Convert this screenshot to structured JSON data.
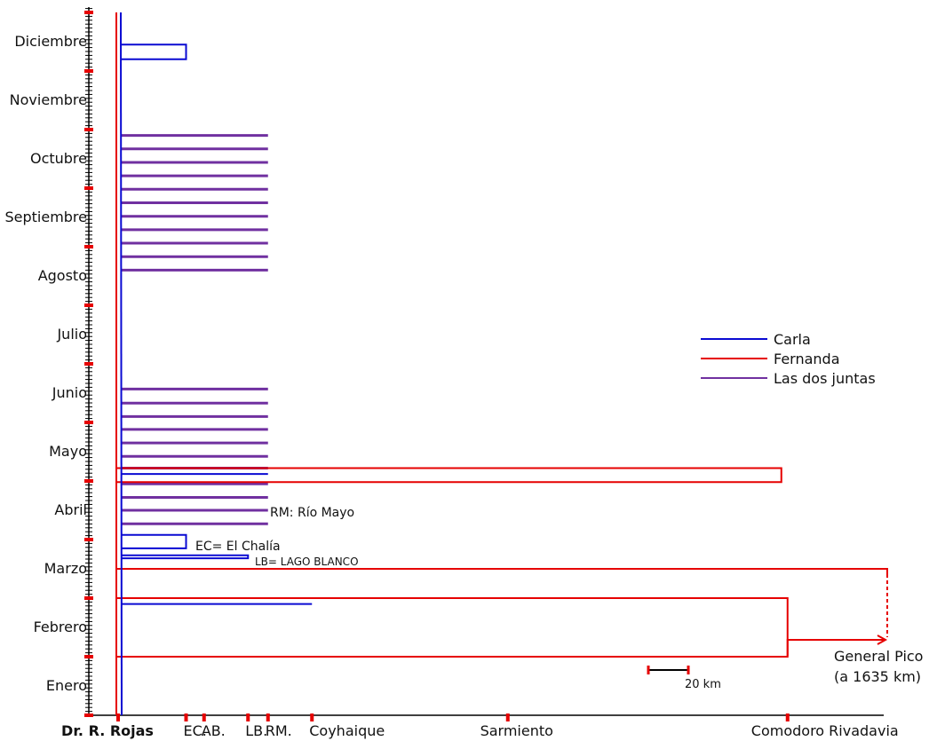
{
  "chart_data": {
    "type": "line",
    "title": "",
    "y_categories": [
      "Enero",
      "Febrero",
      "Marzo",
      "Abril",
      "Mayo",
      "Junio",
      "Julio",
      "Agosto",
      "Septiembre",
      "Octubre",
      "Noviembre",
      "Diciembre"
    ],
    "x_locations": [
      {
        "label": "Dr. R. Rojas",
        "km": 0,
        "bold": true
      },
      {
        "label": "EC.",
        "km": 34
      },
      {
        "label": "AB.",
        "km": 43
      },
      {
        "label": "LB.",
        "km": 65
      },
      {
        "label": "RM.",
        "km": 75
      },
      {
        "label": "Coyhaique",
        "km": 97
      },
      {
        "label": "Sarmiento",
        "km": 195
      },
      {
        "label": "Comodoro Rivadavia",
        "km": 335
      }
    ],
    "legend": [
      {
        "name": "Carla",
        "color": "#0a0ad2"
      },
      {
        "name": "Fernanda",
        "color": "#e60000"
      },
      {
        "name": "Las dos juntas",
        "color": "#7030a0"
      }
    ],
    "series": [
      {
        "name": "Carla",
        "color": "#0a0ad2",
        "trips": [
          {
            "start_month": 1.9,
            "end_month": 1.9,
            "dest_km": 97
          },
          {
            "start_month": 2.68,
            "end_month": 2.73,
            "dest_km": 65
          },
          {
            "start_month": 2.85,
            "end_month": 3.08,
            "dest_km": 34
          },
          {
            "start_month": 4.12,
            "end_month": 4.12,
            "dest_km": 75
          },
          {
            "start_month": 11.2,
            "end_month": 11.45,
            "dest_km": 34
          }
        ]
      },
      {
        "name": "Fernanda",
        "color": "#e60000",
        "trips": [
          {
            "start_month": 1.0,
            "end_month": 2.0,
            "dest_km": 335
          },
          {
            "start_month": 2.5,
            "end_month": 2.5,
            "dest_km": 383
          },
          {
            "start_month": 3.98,
            "end_month": 4.22,
            "dest_km": 331
          }
        ]
      },
      {
        "name": "Las dos juntas",
        "color": "#7030a0",
        "trips_months": [
          3.27,
          3.5,
          3.72,
          3.95,
          4.22,
          4.42,
          4.65,
          4.88,
          5.1,
          5.33,
          5.57,
          7.6,
          7.83,
          8.06,
          8.29,
          8.52,
          8.75,
          8.98,
          9.21,
          9.44,
          9.67,
          9.9
        ],
        "dest_km": 75
      }
    ],
    "annotations": [
      {
        "text": "RM: Río Mayo"
      },
      {
        "text": "EC= El Chalía"
      },
      {
        "text": "LB= LAGO BLANCO"
      }
    ],
    "general_pico": {
      "line1": "General Pico",
      "line2": "(a 1635 km)"
    },
    "scale_bar": {
      "label": "20 km",
      "km": 20
    }
  }
}
